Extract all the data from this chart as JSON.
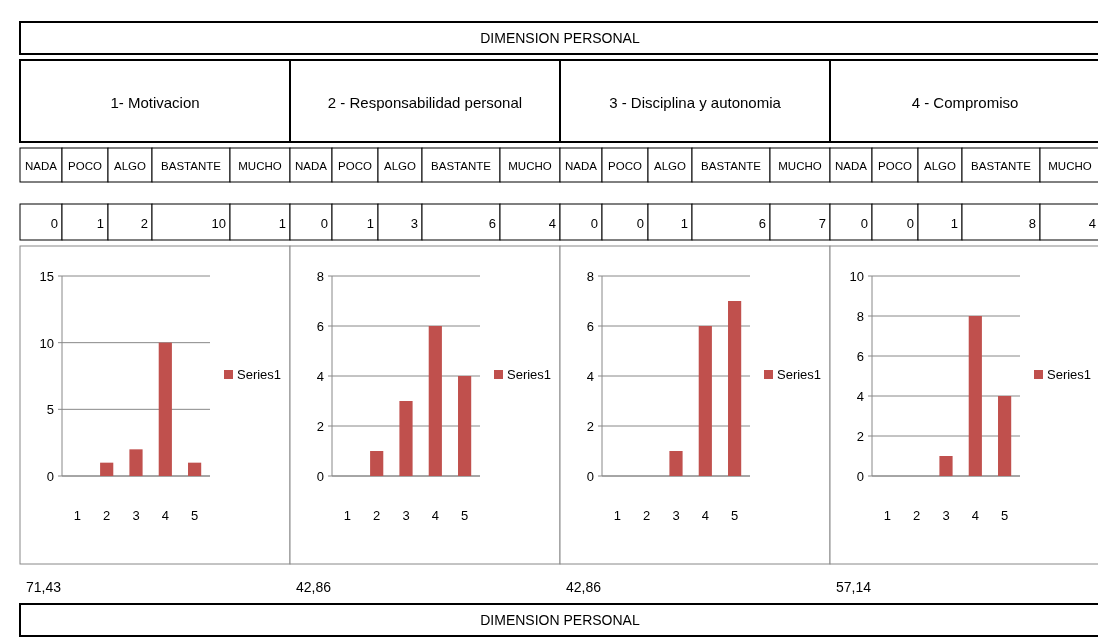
{
  "chart_data": [
    {
      "type": "other",
      "title": "DIMENSION PERSONAL"
    },
    {
      "type": "bar",
      "title": "1- Motivacion",
      "annotations": [
        "NADA",
        "POCO",
        "ALGO",
        "BASTANTE",
        "MUCHO",
        "0",
        "1",
        "2",
        "10",
        "1",
        "71,43"
      ],
      "categories": [
        "1",
        "2",
        "3",
        "4",
        "5"
      ],
      "series": [
        {
          "name": "Series1",
          "color": "#c0504d",
          "values": [
            0,
            1,
            2,
            10,
            1
          ]
        }
      ],
      "ylim": [
        0,
        15
      ],
      "yticks": [
        0,
        5,
        10,
        15
      ],
      "grid": "y",
      "legend": "right"
    },
    {
      "type": "bar",
      "title": "2 - Responsabilidad personal",
      "annotations": [
        "NADA",
        "POCO",
        "ALGO",
        "BASTANTE",
        "MUCHO",
        "0",
        "1",
        "3",
        "6",
        "4",
        "42,86"
      ],
      "categories": [
        "1",
        "2",
        "3",
        "4",
        "5"
      ],
      "series": [
        {
          "name": "Series1",
          "color": "#c0504d",
          "values": [
            0,
            1,
            3,
            6,
            4
          ]
        }
      ],
      "ylim": [
        0,
        8
      ],
      "yticks": [
        0,
        2,
        4,
        6,
        8
      ],
      "grid": "y",
      "legend": "right"
    },
    {
      "type": "bar",
      "title": "3 - Disciplina y autonomia",
      "annotations": [
        "NADA",
        "POCO",
        "ALGO",
        "BASTANTE",
        "MUCHO",
        "0",
        "0",
        "1",
        "6",
        "7",
        "42,86"
      ],
      "categories": [
        "1",
        "2",
        "3",
        "4",
        "5"
      ],
      "series": [
        {
          "name": "Series1",
          "color": "#c0504d",
          "values": [
            0,
            0,
            1,
            6,
            7
          ]
        }
      ],
      "ylim": [
        0,
        8
      ],
      "yticks": [
        0,
        2,
        4,
        6,
        8
      ],
      "grid": "y",
      "legend": "right"
    },
    {
      "type": "bar",
      "title": "4 - Compromiso",
      "annotations": [
        "NADA",
        "POCO",
        "ALGO",
        "BASTANTE",
        "MUCHO",
        "0",
        "0",
        "1",
        "8",
        "4",
        "57,14"
      ],
      "categories": [
        "1",
        "2",
        "3",
        "4",
        "5"
      ],
      "series": [
        {
          "name": "Series1",
          "color": "#c0504d",
          "values": [
            0,
            0,
            1,
            8,
            4
          ]
        }
      ],
      "ylim": [
        0,
        10
      ],
      "yticks": [
        0,
        2,
        4,
        6,
        8,
        10
      ],
      "grid": "y",
      "legend": "right"
    },
    {
      "type": "other",
      "title": "DIMENSION PERSONAL"
    }
  ]
}
